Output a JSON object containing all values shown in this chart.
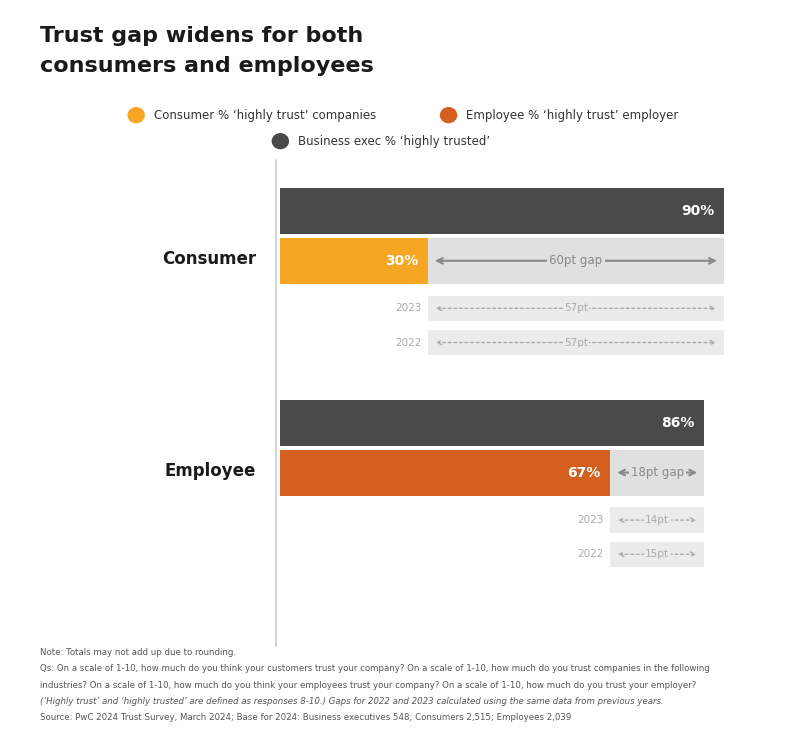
{
  "title_line1": "Trust gap widens for both",
  "title_line2": "consumers and employees",
  "title_fontsize": 16,
  "background_color": "#ffffff",
  "legend_items": [
    {
      "label": "Consumer % ‘highly trust’ companies",
      "color": "#f5a623"
    },
    {
      "label": "Employee % ‘highly trust’ employer",
      "color": "#d45f1e"
    },
    {
      "label": "Business exec % ‘highly trusted’",
      "color": "#4a4a4a"
    }
  ],
  "consumer": {
    "label": "Consumer",
    "exec_pct": 90,
    "trust_pct": 30,
    "gap_label": "60pt gap",
    "bar_color": "#f5a623",
    "exec_color": "#4a4a4a",
    "gap_color": "#e0e0e0",
    "prior_years": [
      {
        "year": "2023",
        "gap": "57pt"
      },
      {
        "year": "2022",
        "gap": "57pt"
      }
    ]
  },
  "employee": {
    "label": "Employee",
    "exec_pct": 86,
    "trust_pct": 67,
    "gap_label": "18pt gap",
    "bar_color": "#d45f1e",
    "exec_color": "#4a4a4a",
    "gap_color": "#e0e0e0",
    "prior_years": [
      {
        "year": "2023",
        "gap": "14pt"
      },
      {
        "year": "2022",
        "gap": "15pt"
      }
    ]
  },
  "note_lines": [
    "Note: Totals may not add up due to rounding.",
    "Qs: On a scale of 1-10, how much do you think your customers trust your company? On a scale of 1-10, how much do you trust companies in the following",
    "industries? On a scale of 1-10, how much do you think your employees trust your company? On a scale of 1-10, how much do you trust your employer?",
    "(‘Highly trust’ and ‘highly trusted’ are defined as responses 8-10.) Gaps for 2022 and 2023 calculated using the same data from previous years.",
    "Source: PwC 2024 Trust Survey, March 2024; Base for 2024: Business executives 548; Consumers 2,515; Employees 2,039"
  ]
}
